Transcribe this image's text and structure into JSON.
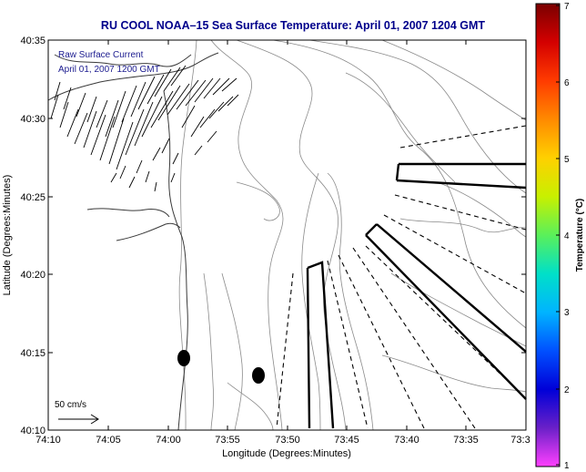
{
  "title": "RU COOL  NOAA–15  Sea Surface Temperature:  April 01, 2007 1204 GMT",
  "legend": {
    "line1": "Raw Surface Current",
    "line2": "April 01, 2007 1200 GMT"
  },
  "axes": {
    "xlabel": "Longitude (Degrees:Minutes)",
    "ylabel": "Latitude (Degrees:Minutes)",
    "x_ticks": [
      "74:10",
      "74:05",
      "74:00",
      "73:55",
      "73:50",
      "73:45",
      "73:40",
      "73:35",
      "73:3"
    ],
    "y_ticks": [
      "40:35",
      "40:30",
      "40:25",
      "40:20",
      "40:15",
      "40:10"
    ]
  },
  "colorbar": {
    "label": "Temperature (°C)",
    "ticks": [
      "7",
      "6",
      "5",
      "4",
      "3",
      "2",
      "1"
    ],
    "colors": [
      "#7a0000",
      "#d40000",
      "#ff3b00",
      "#ff8a00",
      "#ffd000",
      "#c8f000",
      "#5af05a",
      "#00e0c8",
      "#00b4ff",
      "#0050ff",
      "#0000d8",
      "#6a20c8",
      "#ff40ff"
    ]
  },
  "scale_label": "50 cm/s",
  "colors": {
    "title": "#00008b",
    "frame": "#000000",
    "contour": "#7a7a7a"
  }
}
